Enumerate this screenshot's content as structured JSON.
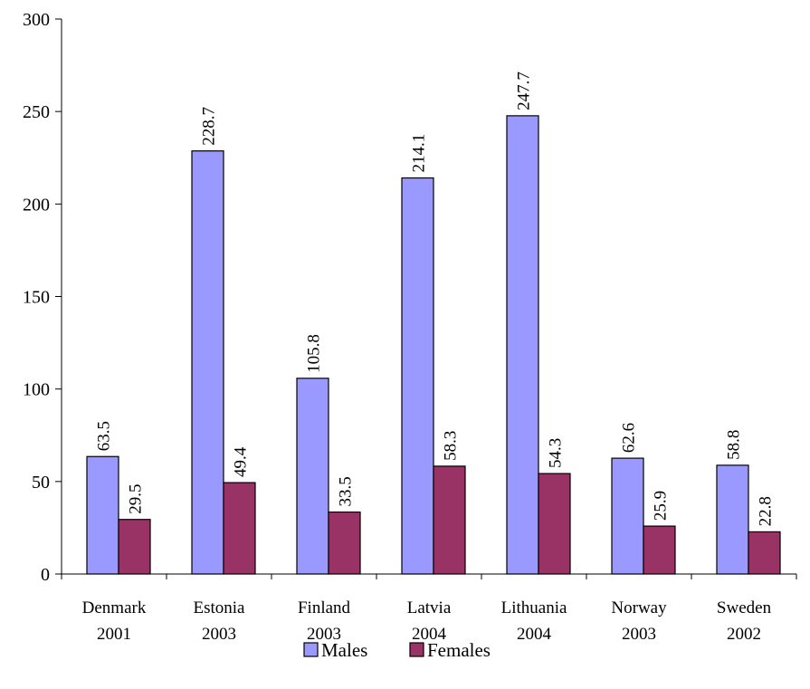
{
  "chart_data": {
    "type": "bar",
    "title": "",
    "xlabel": "",
    "ylabel": "",
    "ylim": [
      0,
      300
    ],
    "yticks": [
      0,
      50,
      100,
      150,
      200,
      250,
      300
    ],
    "categories": [
      [
        "Denmark",
        "2001"
      ],
      [
        "Estonia",
        "2003"
      ],
      [
        "Finland",
        "2003"
      ],
      [
        "Latvia",
        "2004"
      ],
      [
        "Lithuania",
        "2004"
      ],
      [
        "Norway",
        "2003"
      ],
      [
        "Sweden",
        "2002"
      ]
    ],
    "series": [
      {
        "name": "Males",
        "color": "#9999ff",
        "values": [
          63.5,
          228.7,
          105.8,
          214.1,
          247.7,
          62.6,
          58.8
        ],
        "labels": [
          "63.5",
          "228.7",
          "105.8",
          "214.1",
          "247.7",
          "62.6",
          "58.8"
        ]
      },
      {
        "name": "Females",
        "color": "#993366",
        "values": [
          29.5,
          49.4,
          33.5,
          58.3,
          54.3,
          25.9,
          22.8
        ],
        "labels": [
          "29.5",
          "49.4",
          "33.5",
          "58.3",
          "54.3",
          "25.9",
          "22.8"
        ]
      }
    ],
    "legend": "bottom",
    "grid": false
  }
}
